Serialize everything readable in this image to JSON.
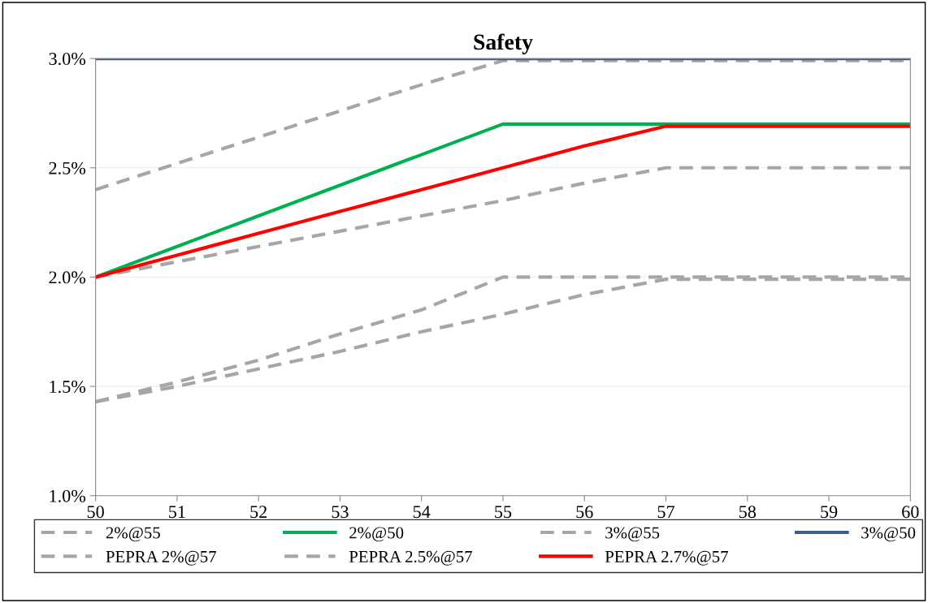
{
  "chart_data": {
    "type": "line",
    "title": "Safety",
    "x": [
      50,
      51,
      52,
      53,
      54,
      55,
      56,
      57,
      58,
      59,
      60
    ],
    "xlim": [
      50,
      60
    ],
    "xticks": [
      50,
      51,
      52,
      53,
      54,
      55,
      56,
      57,
      58,
      59,
      60
    ],
    "ylim": [
      1.0,
      3.0
    ],
    "yticks": [
      {
        "value": 1.0,
        "label": "1.0%"
      },
      {
        "value": 1.5,
        "label": "1.5%"
      },
      {
        "value": 2.0,
        "label": "2.0%"
      },
      {
        "value": 2.5,
        "label": "2.5%"
      },
      {
        "value": 3.0,
        "label": "3.0%"
      }
    ],
    "grid": "y",
    "legend": "bottom",
    "marker": "none",
    "series": [
      {
        "name": "2%@55",
        "color": "#a6a6a6",
        "line_style": "dashed",
        "values": [
          1.43,
          1.52,
          1.62,
          1.74,
          1.85,
          2.0,
          2.0,
          2.0,
          2.0,
          2.0,
          2.0
        ]
      },
      {
        "name": "2%@50",
        "color": "#00b050",
        "line_style": "solid",
        "values": [
          2.0,
          2.14,
          2.28,
          2.42,
          2.56,
          2.7,
          2.7,
          2.7,
          2.7,
          2.7,
          2.7
        ]
      },
      {
        "name": "3%@55",
        "color": "#a6a6a6",
        "line_style": "dashed",
        "values": [
          2.4,
          2.52,
          2.64,
          2.76,
          2.88,
          2.99,
          2.99,
          2.99,
          2.99,
          2.99,
          2.99
        ]
      },
      {
        "name": "3%@50",
        "color": "#3a5f8b",
        "line_style": "solid",
        "values": [
          3.0,
          3.0,
          3.0,
          3.0,
          3.0,
          3.0,
          3.0,
          3.0,
          3.0,
          3.0,
          3.0
        ]
      },
      {
        "name": "PEPRA 2%@57",
        "color": "#a6a6a6",
        "line_style": "dashed",
        "values": [
          1.43,
          1.5,
          1.58,
          1.66,
          1.75,
          1.83,
          1.92,
          1.99,
          1.99,
          1.99,
          1.99
        ]
      },
      {
        "name": "PEPRA 2.5%@57",
        "color": "#a6a6a6",
        "line_style": "dashed",
        "values": [
          2.0,
          2.07,
          2.14,
          2.21,
          2.28,
          2.35,
          2.43,
          2.5,
          2.5,
          2.5,
          2.5
        ]
      },
      {
        "name": "PEPRA 2.7%@57",
        "color": "#ff0000",
        "line_style": "solid",
        "values": [
          2.0,
          2.1,
          2.2,
          2.3,
          2.4,
          2.5,
          2.6,
          2.69,
          2.69,
          2.69,
          2.69
        ]
      }
    ]
  }
}
